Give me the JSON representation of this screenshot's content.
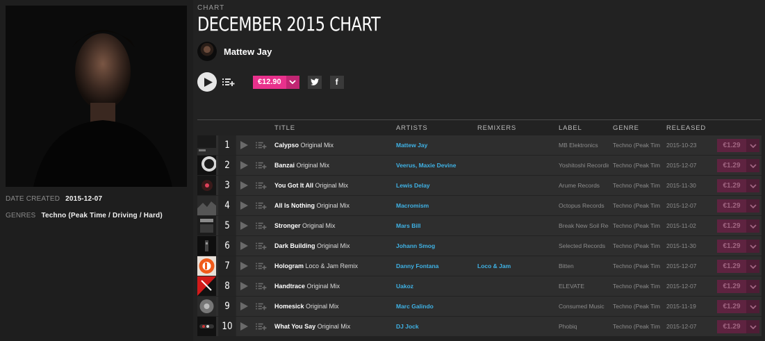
{
  "left": {
    "date_created_label": "DATE CREATED",
    "date_created": "2015-12-07",
    "genres_label": "GENRES",
    "genres": "Techno (Peak Time / Driving / Hard)"
  },
  "header": {
    "kicker": "CHART",
    "title": "DECEMBER 2015 CHART",
    "curator": "Mattew Jay",
    "price": "€12.90",
    "twitter_glyph": "t",
    "facebook_glyph": "f"
  },
  "columns": {
    "title": "TITLE",
    "artists": "ARTISTS",
    "remixers": "REMIXERS",
    "label": "LABEL",
    "genre": "GENRE",
    "released": "RELEASED"
  },
  "colors": {
    "accent_pink": "#e8318c",
    "link_blue": "#3fb2e5",
    "background": "#222222"
  },
  "tracks": [
    {
      "num": "1",
      "title": "Calypso",
      "mix": "Original Mix",
      "artists": "Mattew Jay",
      "remixers": "",
      "label": "MB Elektronics",
      "genre": "Techno (Peak Time / Driving / Hard)",
      "released": "2015-10-23",
      "price": "€1.29",
      "thumb": "t1"
    },
    {
      "num": "2",
      "title": "Banzai",
      "mix": "Original Mix",
      "artists": "Veerus, Maxie Devine",
      "remixers": "",
      "label": "Yoshitoshi Recordings",
      "genre": "Techno (Peak Time / Driving / Hard)",
      "released": "2015-12-07",
      "price": "€1.29",
      "thumb": "t2"
    },
    {
      "num": "3",
      "title": "You Got It All",
      "mix": "Original Mix",
      "artists": "Lewis Delay",
      "remixers": "",
      "label": "Arume Records",
      "genre": "Techno (Peak Time / Driving / Hard)",
      "released": "2015-11-30",
      "price": "€1.29",
      "thumb": "t3"
    },
    {
      "num": "4",
      "title": "All Is Nothing",
      "mix": "Original Mix",
      "artists": "Macromism",
      "remixers": "",
      "label": "Octopus Records",
      "genre": "Techno (Peak Time / Driving / Hard)",
      "released": "2015-12-07",
      "price": "€1.29",
      "thumb": "t4"
    },
    {
      "num": "5",
      "title": "Stronger",
      "mix": "Original Mix",
      "artists": "Mars Bill",
      "remixers": "",
      "label": "Break New Soil Recordings",
      "genre": "Techno (Peak Time / Driving / Hard)",
      "released": "2015-11-02",
      "price": "€1.29",
      "thumb": "t5"
    },
    {
      "num": "6",
      "title": "Dark Building",
      "mix": "Original Mix",
      "artists": "Johann Smog",
      "remixers": "",
      "label": "Selected Records",
      "genre": "Techno (Peak Time / Driving / Hard)",
      "released": "2015-11-30",
      "price": "€1.29",
      "thumb": "t6"
    },
    {
      "num": "7",
      "title": "Hologram",
      "mix": "Loco & Jam Remix",
      "artists": "Danny Fontana",
      "remixers": "Loco & Jam",
      "label": "Bitten",
      "genre": "Techno (Peak Time / Driving / Hard)",
      "released": "2015-12-07",
      "price": "€1.29",
      "thumb": "t7"
    },
    {
      "num": "8",
      "title": "Handtrace",
      "mix": "Original Mix",
      "artists": "Uakoz",
      "remixers": "",
      "label": "ELEVATE",
      "genre": "Techno (Peak Time / Driving / Hard)",
      "released": "2015-12-07",
      "price": "€1.29",
      "thumb": "t8"
    },
    {
      "num": "9",
      "title": "Homesick",
      "mix": "Original Mix",
      "artists": "Marc Galindo",
      "remixers": "",
      "label": "Consumed Music",
      "genre": "Techno (Peak Time / Driving / Hard)",
      "released": "2015-11-19",
      "price": "€1.29",
      "thumb": "t9"
    },
    {
      "num": "10",
      "title": "What You Say",
      "mix": "Original Mix",
      "artists": "DJ Jock",
      "remixers": "",
      "label": "Phobiq",
      "genre": "Techno (Peak Time / Driving / Hard)",
      "released": "2015-12-07",
      "price": "€1.29",
      "thumb": "t10"
    }
  ]
}
